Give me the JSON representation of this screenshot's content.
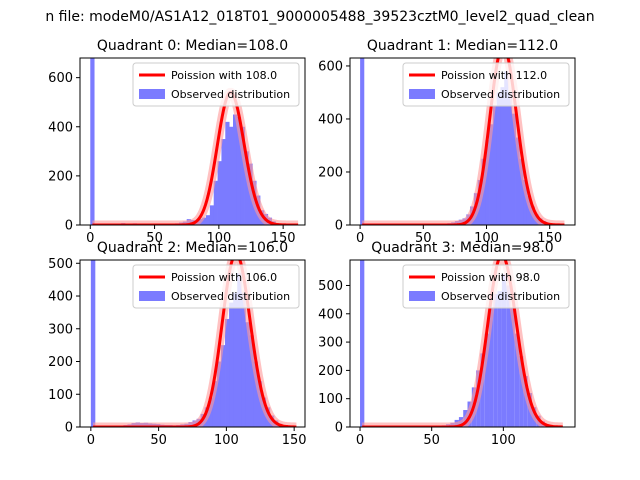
{
  "figure": {
    "suptitle": "n file: modeM0/AS1A12_018T01_9000005488_39523cztM0_level2_quad_clean"
  },
  "chart_data": [
    {
      "type": "bar",
      "title": "Quadrant 0: Median=108.0",
      "xlim": [
        -8,
        167
      ],
      "ylim": [
        0,
        680
      ],
      "xticks": [
        0,
        50,
        100,
        150
      ],
      "yticks": [
        0,
        200,
        400,
        600
      ],
      "legend_position": "upper right",
      "bin_width": 3.3,
      "colors": {
        "histogram": "#7b7bff",
        "fit": "#ff0000",
        "fit_halo": "#ff9999"
      },
      "series": [
        {
          "name": "Observed distribution",
          "kind": "histogram",
          "bins": [
            [
              0,
              680
            ],
            [
              15,
              4
            ],
            [
              18,
              5
            ],
            [
              21,
              6
            ],
            [
              24,
              8
            ],
            [
              27,
              6
            ],
            [
              30,
              5
            ],
            [
              33,
              7
            ],
            [
              36,
              6
            ],
            [
              39,
              5
            ],
            [
              42,
              5
            ],
            [
              45,
              4
            ],
            [
              48,
              4
            ],
            [
              51,
              5
            ],
            [
              54,
              4
            ],
            [
              57,
              3
            ],
            [
              60,
              3
            ],
            [
              63,
              5
            ],
            [
              66,
              7
            ],
            [
              69,
              10
            ],
            [
              72,
              14
            ],
            [
              75,
              24
            ],
            [
              78,
              20
            ],
            [
              81,
              18
            ],
            [
              84,
              25
            ],
            [
              87,
              30
            ],
            [
              90,
              40
            ],
            [
              93,
              80
            ],
            [
              96,
              180
            ],
            [
              99,
              260
            ],
            [
              102,
              350
            ],
            [
              105,
              420
            ],
            [
              108,
              400
            ],
            [
              111,
              450
            ],
            [
              114,
              440
            ],
            [
              117,
              400
            ],
            [
              120,
              300
            ],
            [
              123,
              250
            ],
            [
              126,
              180
            ],
            [
              129,
              120
            ],
            [
              132,
              60
            ],
            [
              135,
              45
            ],
            [
              138,
              30
            ],
            [
              141,
              15
            ],
            [
              144,
              8
            ],
            [
              147,
              5
            ]
          ]
        },
        {
          "name": "Poission with 108.0",
          "kind": "poisson",
          "mu": 108.0,
          "x_range": [
            0,
            160
          ]
        }
      ]
    },
    {
      "type": "bar",
      "title": "Quadrant 1: Median=112.0",
      "xlim": [
        -8,
        170
      ],
      "ylim": [
        0,
        630
      ],
      "xticks": [
        0,
        50,
        100,
        150
      ],
      "yticks": [
        0,
        200,
        400,
        600
      ],
      "legend_position": "upper right",
      "bin_width": 3.3,
      "colors": {
        "histogram": "#7b7bff",
        "fit": "#ff0000",
        "fit_halo": "#ff9999"
      },
      "series": [
        {
          "name": "Observed distribution",
          "kind": "histogram",
          "bins": [
            [
              0,
              630
            ],
            [
              66,
              5
            ],
            [
              69,
              7
            ],
            [
              72,
              10
            ],
            [
              75,
              15
            ],
            [
              78,
              20
            ],
            [
              81,
              25
            ],
            [
              84,
              40
            ],
            [
              87,
              70
            ],
            [
              90,
              120
            ],
            [
              93,
              170
            ],
            [
              96,
              250
            ],
            [
              99,
              320
            ],
            [
              102,
              380
            ],
            [
              105,
              450
            ],
            [
              108,
              500
            ],
            [
              111,
              520
            ],
            [
              114,
              580
            ],
            [
              117,
              500
            ],
            [
              120,
              420
            ],
            [
              123,
              330
            ],
            [
              126,
              250
            ],
            [
              129,
              170
            ],
            [
              132,
              110
            ],
            [
              135,
              70
            ],
            [
              138,
              40
            ],
            [
              141,
              25
            ],
            [
              144,
              15
            ],
            [
              147,
              8
            ],
            [
              150,
              5
            ]
          ]
        },
        {
          "name": "Poission with 112.0",
          "kind": "poisson",
          "mu": 112.0,
          "x_range": [
            0,
            160
          ]
        }
      ]
    },
    {
      "type": "bar",
      "title": "Quadrant 2: Median=106.0",
      "xlim": [
        -8,
        158
      ],
      "ylim": [
        0,
        510
      ],
      "xticks": [
        0,
        50,
        100,
        150
      ],
      "yticks": [
        0,
        100,
        200,
        300,
        400,
        500
      ],
      "legend_position": "upper right",
      "bin_width": 3.3,
      "colors": {
        "histogram": "#7b7bff",
        "fit": "#ff0000",
        "fit_halo": "#ff9999"
      },
      "series": [
        {
          "name": "Observed distribution",
          "kind": "histogram",
          "bins": [
            [
              0,
              510
            ],
            [
              21,
              4
            ],
            [
              24,
              6
            ],
            [
              27,
              8
            ],
            [
              30,
              12
            ],
            [
              33,
              14
            ],
            [
              36,
              12
            ],
            [
              39,
              13
            ],
            [
              42,
              11
            ],
            [
              45,
              10
            ],
            [
              48,
              9
            ],
            [
              51,
              7
            ],
            [
              54,
              6
            ],
            [
              57,
              6
            ],
            [
              60,
              5
            ],
            [
              63,
              6
            ],
            [
              66,
              8
            ],
            [
              69,
              10
            ],
            [
              72,
              15
            ],
            [
              75,
              20
            ],
            [
              78,
              25
            ],
            [
              81,
              40
            ],
            [
              84,
              60
            ],
            [
              87,
              90
            ],
            [
              90,
              140
            ],
            [
              93,
              200
            ],
            [
              96,
              250
            ],
            [
              99,
              330
            ],
            [
              102,
              380
            ],
            [
              105,
              410
            ],
            [
              108,
              470
            ],
            [
              111,
              410
            ],
            [
              114,
              320
            ],
            [
              117,
              280
            ],
            [
              120,
              200
            ],
            [
              123,
              140
            ],
            [
              126,
              90
            ],
            [
              129,
              60
            ],
            [
              132,
              35
            ],
            [
              135,
              20
            ],
            [
              138,
              10
            ]
          ]
        },
        {
          "name": "Poission with 106.0",
          "kind": "poisson",
          "mu": 106.0,
          "x_range": [
            0,
            150
          ]
        }
      ]
    },
    {
      "type": "bar",
      "title": "Quadrant 3: Median=98.0",
      "xlim": [
        -7,
        150
      ],
      "ylim": [
        0,
        590
      ],
      "xticks": [
        0,
        50,
        100
      ],
      "yticks": [
        0,
        100,
        200,
        300,
        400,
        500
      ],
      "legend_position": "upper right",
      "bin_width": 3.0,
      "colors": {
        "histogram": "#7b7bff",
        "fit": "#ff0000",
        "fit_halo": "#ff9999"
      },
      "series": [
        {
          "name": "Observed distribution",
          "kind": "histogram",
          "bins": [
            [
              0,
              590
            ],
            [
              54,
              4
            ],
            [
              57,
              6
            ],
            [
              60,
              10
            ],
            [
              63,
              15
            ],
            [
              66,
              25
            ],
            [
              69,
              35
            ],
            [
              72,
              60
            ],
            [
              75,
              90
            ],
            [
              78,
              140
            ],
            [
              81,
              200
            ],
            [
              84,
              260
            ],
            [
              87,
              330
            ],
            [
              90,
              420
            ],
            [
              93,
              470
            ],
            [
              96,
              480
            ],
            [
              99,
              540
            ],
            [
              102,
              500
            ],
            [
              105,
              420
            ],
            [
              108,
              330
            ],
            [
              111,
              250
            ],
            [
              114,
              180
            ],
            [
              117,
              120
            ],
            [
              120,
              70
            ],
            [
              123,
              40
            ],
            [
              126,
              20
            ],
            [
              129,
              10
            ]
          ]
        },
        {
          "name": "Poission with 98.0",
          "kind": "poisson",
          "mu": 98.0,
          "x_range": [
            0,
            140
          ]
        }
      ]
    }
  ]
}
